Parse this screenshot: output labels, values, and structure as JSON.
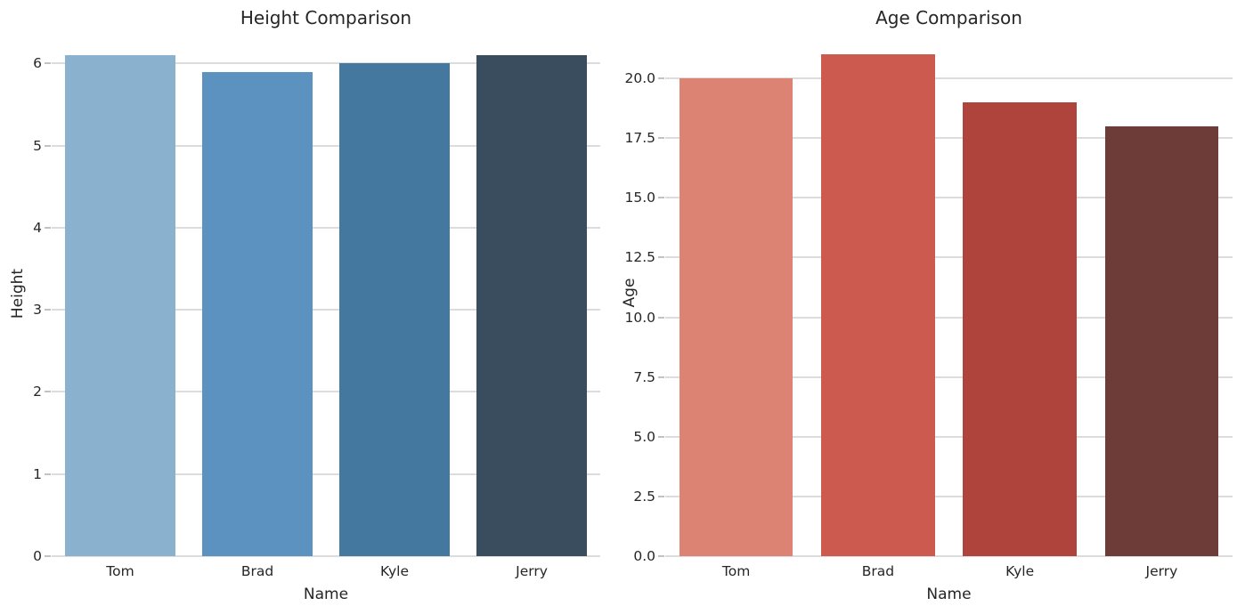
{
  "figure": {
    "background": "#ffffff",
    "text_color": "#262626",
    "grid_color": "#dcdcdc",
    "tick_mark_color": "#c2c2c2",
    "grid": true,
    "legend": "none"
  },
  "chart_data": [
    {
      "type": "bar",
      "title": "Height Comparison",
      "xlabel": "Name",
      "ylabel": "Height",
      "categories": [
        "Tom",
        "Brad",
        "Kyle",
        "Jerry"
      ],
      "values": [
        6.1,
        5.9,
        6.0,
        6.1
      ],
      "bar_colors": [
        "#8ab1cd",
        "#5c92bf",
        "#45789e",
        "#3a4d5f"
      ],
      "ylim": [
        0,
        6.405
      ],
      "yticks": [
        0,
        1,
        2,
        3,
        4,
        5,
        6
      ],
      "ytick_labels": [
        "0",
        "1",
        "2",
        "3",
        "4",
        "5",
        "6"
      ],
      "grid": true,
      "legend_position": "none"
    },
    {
      "type": "bar",
      "title": "Age Comparison",
      "xlabel": "Name",
      "ylabel": "Age",
      "categories": [
        "Tom",
        "Brad",
        "Kyle",
        "Jerry"
      ],
      "values": [
        20.0,
        21.0,
        19.0,
        18.0
      ],
      "bar_colors": [
        "#dd8374",
        "#cd5a4e",
        "#ae443c",
        "#6e3c38"
      ],
      "ylim": [
        0,
        22.05
      ],
      "yticks": [
        0,
        2.5,
        5,
        7.5,
        10,
        12.5,
        15,
        17.5,
        20
      ],
      "ytick_labels": [
        "0.0",
        "2.5",
        "5.0",
        "7.5",
        "10.0",
        "12.5",
        "15.0",
        "17.5",
        "20.0"
      ],
      "grid": true,
      "legend_position": "none"
    }
  ]
}
